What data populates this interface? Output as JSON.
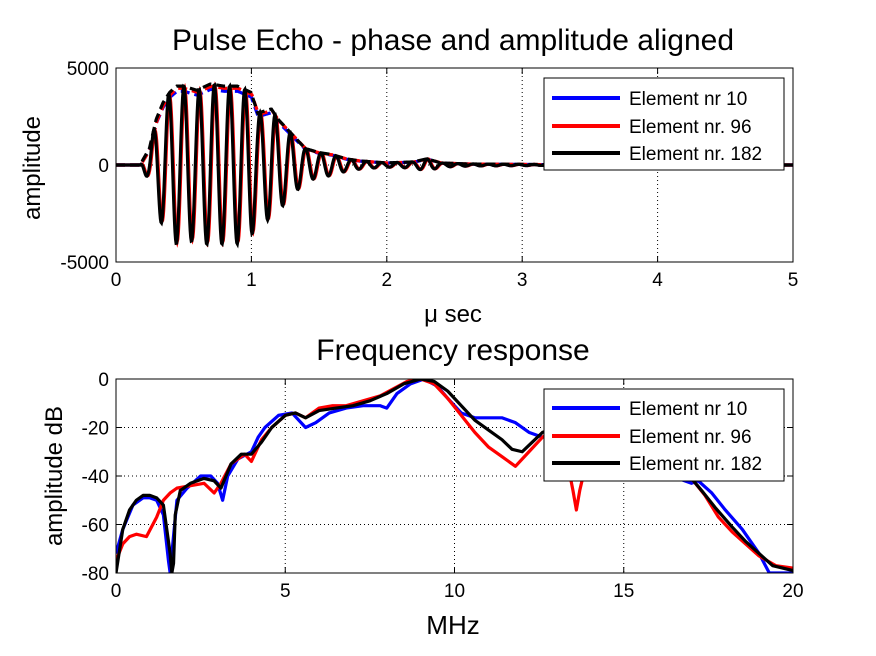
{
  "chart_data": [
    {
      "type": "line",
      "title": "Pulse Echo - phase and amplitude aligned",
      "xlabel": "μ sec",
      "ylabel": "amplitude",
      "xlim": [
        0,
        5
      ],
      "ylim": [
        -5000,
        5000
      ],
      "xticks": [
        0,
        1,
        2,
        3,
        4,
        5
      ],
      "yticks": [
        -5000,
        0,
        5000
      ],
      "grid": true,
      "legend_position": "top-right",
      "legend": [
        "Element nr 10",
        "Element nr. 96",
        "Element nr. 182"
      ],
      "series_colors": [
        "#0000ff",
        "#ff0000",
        "#000000"
      ],
      "pulse": {
        "carrier_frequency_mhz": 8.9,
        "envelope_t": [
          0,
          0.18,
          0.25,
          0.3,
          0.35,
          0.4,
          0.45,
          0.5,
          0.6,
          0.7,
          0.8,
          0.9,
          1.0,
          1.05,
          1.1,
          1.15,
          1.2,
          1.3,
          1.4,
          1.5,
          1.6,
          1.7,
          1.8,
          2.0,
          2.2,
          2.3,
          2.4,
          2.6,
          3.0,
          3.5,
          5.0
        ],
        "envelope_amplitude": [
          0,
          0,
          800,
          2200,
          3000,
          3500,
          3800,
          3800,
          3600,
          3900,
          3800,
          3800,
          3500,
          2500,
          2600,
          2700,
          2200,
          1500,
          800,
          600,
          500,
          300,
          200,
          100,
          150,
          300,
          100,
          50,
          30,
          0,
          0
        ],
        "envelope_dashed": true,
        "envelope_gain": [
          1.0,
          1.04,
          1.07
        ],
        "time_shift_us": [
          0.0,
          0.003,
          -0.003
        ]
      }
    },
    {
      "type": "line",
      "title": "Frequency response",
      "xlabel": "MHz",
      "ylabel": "amplitude dB",
      "xlim": [
        0,
        20
      ],
      "ylim": [
        -80,
        0
      ],
      "xticks": [
        0,
        5,
        10,
        15,
        20
      ],
      "yticks": [
        -80,
        -60,
        -40,
        -20,
        0
      ],
      "grid": true,
      "legend_position": "top-right",
      "series": [
        {
          "name": "Element nr 10",
          "color": "#0000ff",
          "x": [
            0,
            0.2,
            0.5,
            0.8,
            1.0,
            1.2,
            1.4,
            1.55,
            1.6,
            1.65,
            1.8,
            2.1,
            2.5,
            2.8,
            3.0,
            3.15,
            3.3,
            3.6,
            4.0,
            4.2,
            4.4,
            4.8,
            5.2,
            5.6,
            5.9,
            6.3,
            6.8,
            7.3,
            7.8,
            8.0,
            8.3,
            8.7,
            9.1,
            9.5,
            9.8,
            10.2,
            10.6,
            11.0,
            11.4,
            11.8,
            12.2,
            12.6,
            13.0,
            17.0,
            17.2,
            17.6,
            18.0,
            18.5,
            19.0,
            19.3,
            20.0
          ],
          "y": [
            -72,
            -62,
            -52,
            -49,
            -49,
            -50,
            -56,
            -75,
            -80,
            -72,
            -50,
            -45,
            -40,
            -40,
            -43,
            -50,
            -40,
            -33,
            -30,
            -24,
            -20,
            -15,
            -14,
            -20,
            -18,
            -14,
            -12,
            -11,
            -11,
            -12,
            -6,
            -2,
            0,
            -3,
            -8,
            -14,
            -16,
            -16,
            -16,
            -18,
            -22,
            -24,
            -23,
            -43,
            -42,
            -47,
            -54,
            -62,
            -72,
            -80,
            -80
          ]
        },
        {
          "name": "Element nr. 96",
          "color": "#ff0000",
          "x": [
            0,
            0.2,
            0.4,
            0.6,
            0.9,
            1.2,
            1.4,
            1.6,
            1.8,
            2.2,
            2.6,
            2.9,
            3.1,
            3.4,
            3.8,
            4.0,
            4.3,
            4.6,
            5.0,
            5.3,
            5.6,
            6.0,
            6.4,
            6.8,
            7.3,
            7.8,
            8.2,
            8.6,
            9.0,
            9.4,
            9.8,
            10.2,
            10.6,
            11.0,
            11.4,
            11.8,
            12.2,
            12.6,
            13.0,
            13.3,
            13.5,
            13.6,
            13.7,
            13.9,
            17.0,
            17.4,
            17.8,
            18.2,
            18.6,
            19.0,
            19.5,
            20.0
          ],
          "y": [
            -75,
            -68,
            -65,
            -64,
            -65,
            -57,
            -50,
            -47,
            -45,
            -44,
            -43,
            -47,
            -43,
            -35,
            -31,
            -34,
            -25,
            -20,
            -15,
            -14,
            -16,
            -12,
            -11,
            -11,
            -9,
            -7,
            -4,
            -1,
            0,
            -2,
            -8,
            -15,
            -22,
            -28,
            -32,
            -36,
            -30,
            -24,
            -20,
            -32,
            -46,
            -54,
            -46,
            -34,
            -41,
            -48,
            -57,
            -63,
            -68,
            -73,
            -77,
            -78
          ]
        },
        {
          "name": "Element nr. 182",
          "color": "#000000",
          "x": [
            0,
            0.2,
            0.4,
            0.6,
            0.8,
            1.0,
            1.2,
            1.4,
            1.6,
            1.65,
            1.7,
            1.75,
            1.9,
            2.2,
            2.6,
            2.9,
            3.1,
            3.4,
            3.7,
            4.0,
            4.3,
            4.6,
            5.0,
            5.3,
            5.6,
            6.0,
            6.5,
            7.0,
            7.5,
            8.0,
            8.5,
            9.0,
            9.4,
            9.8,
            10.2,
            10.6,
            11.0,
            11.4,
            11.7,
            12.0,
            12.3,
            12.6,
            13.0,
            17.0,
            17.3,
            17.7,
            18.2,
            18.6,
            19.0,
            19.4,
            20.0
          ],
          "y": [
            -80,
            -62,
            -54,
            -50,
            -48,
            -48,
            -49,
            -52,
            -72,
            -80,
            -76,
            -56,
            -46,
            -43,
            -41,
            -42,
            -45,
            -35,
            -31,
            -31,
            -26,
            -20,
            -15,
            -14,
            -16,
            -13,
            -12,
            -11,
            -9,
            -6,
            -2,
            0,
            -1,
            -5,
            -11,
            -17,
            -21,
            -25,
            -29,
            -30,
            -26,
            -22,
            -20,
            -41,
            -46,
            -53,
            -61,
            -67,
            -72,
            -77,
            -79
          ]
        }
      ]
    }
  ]
}
